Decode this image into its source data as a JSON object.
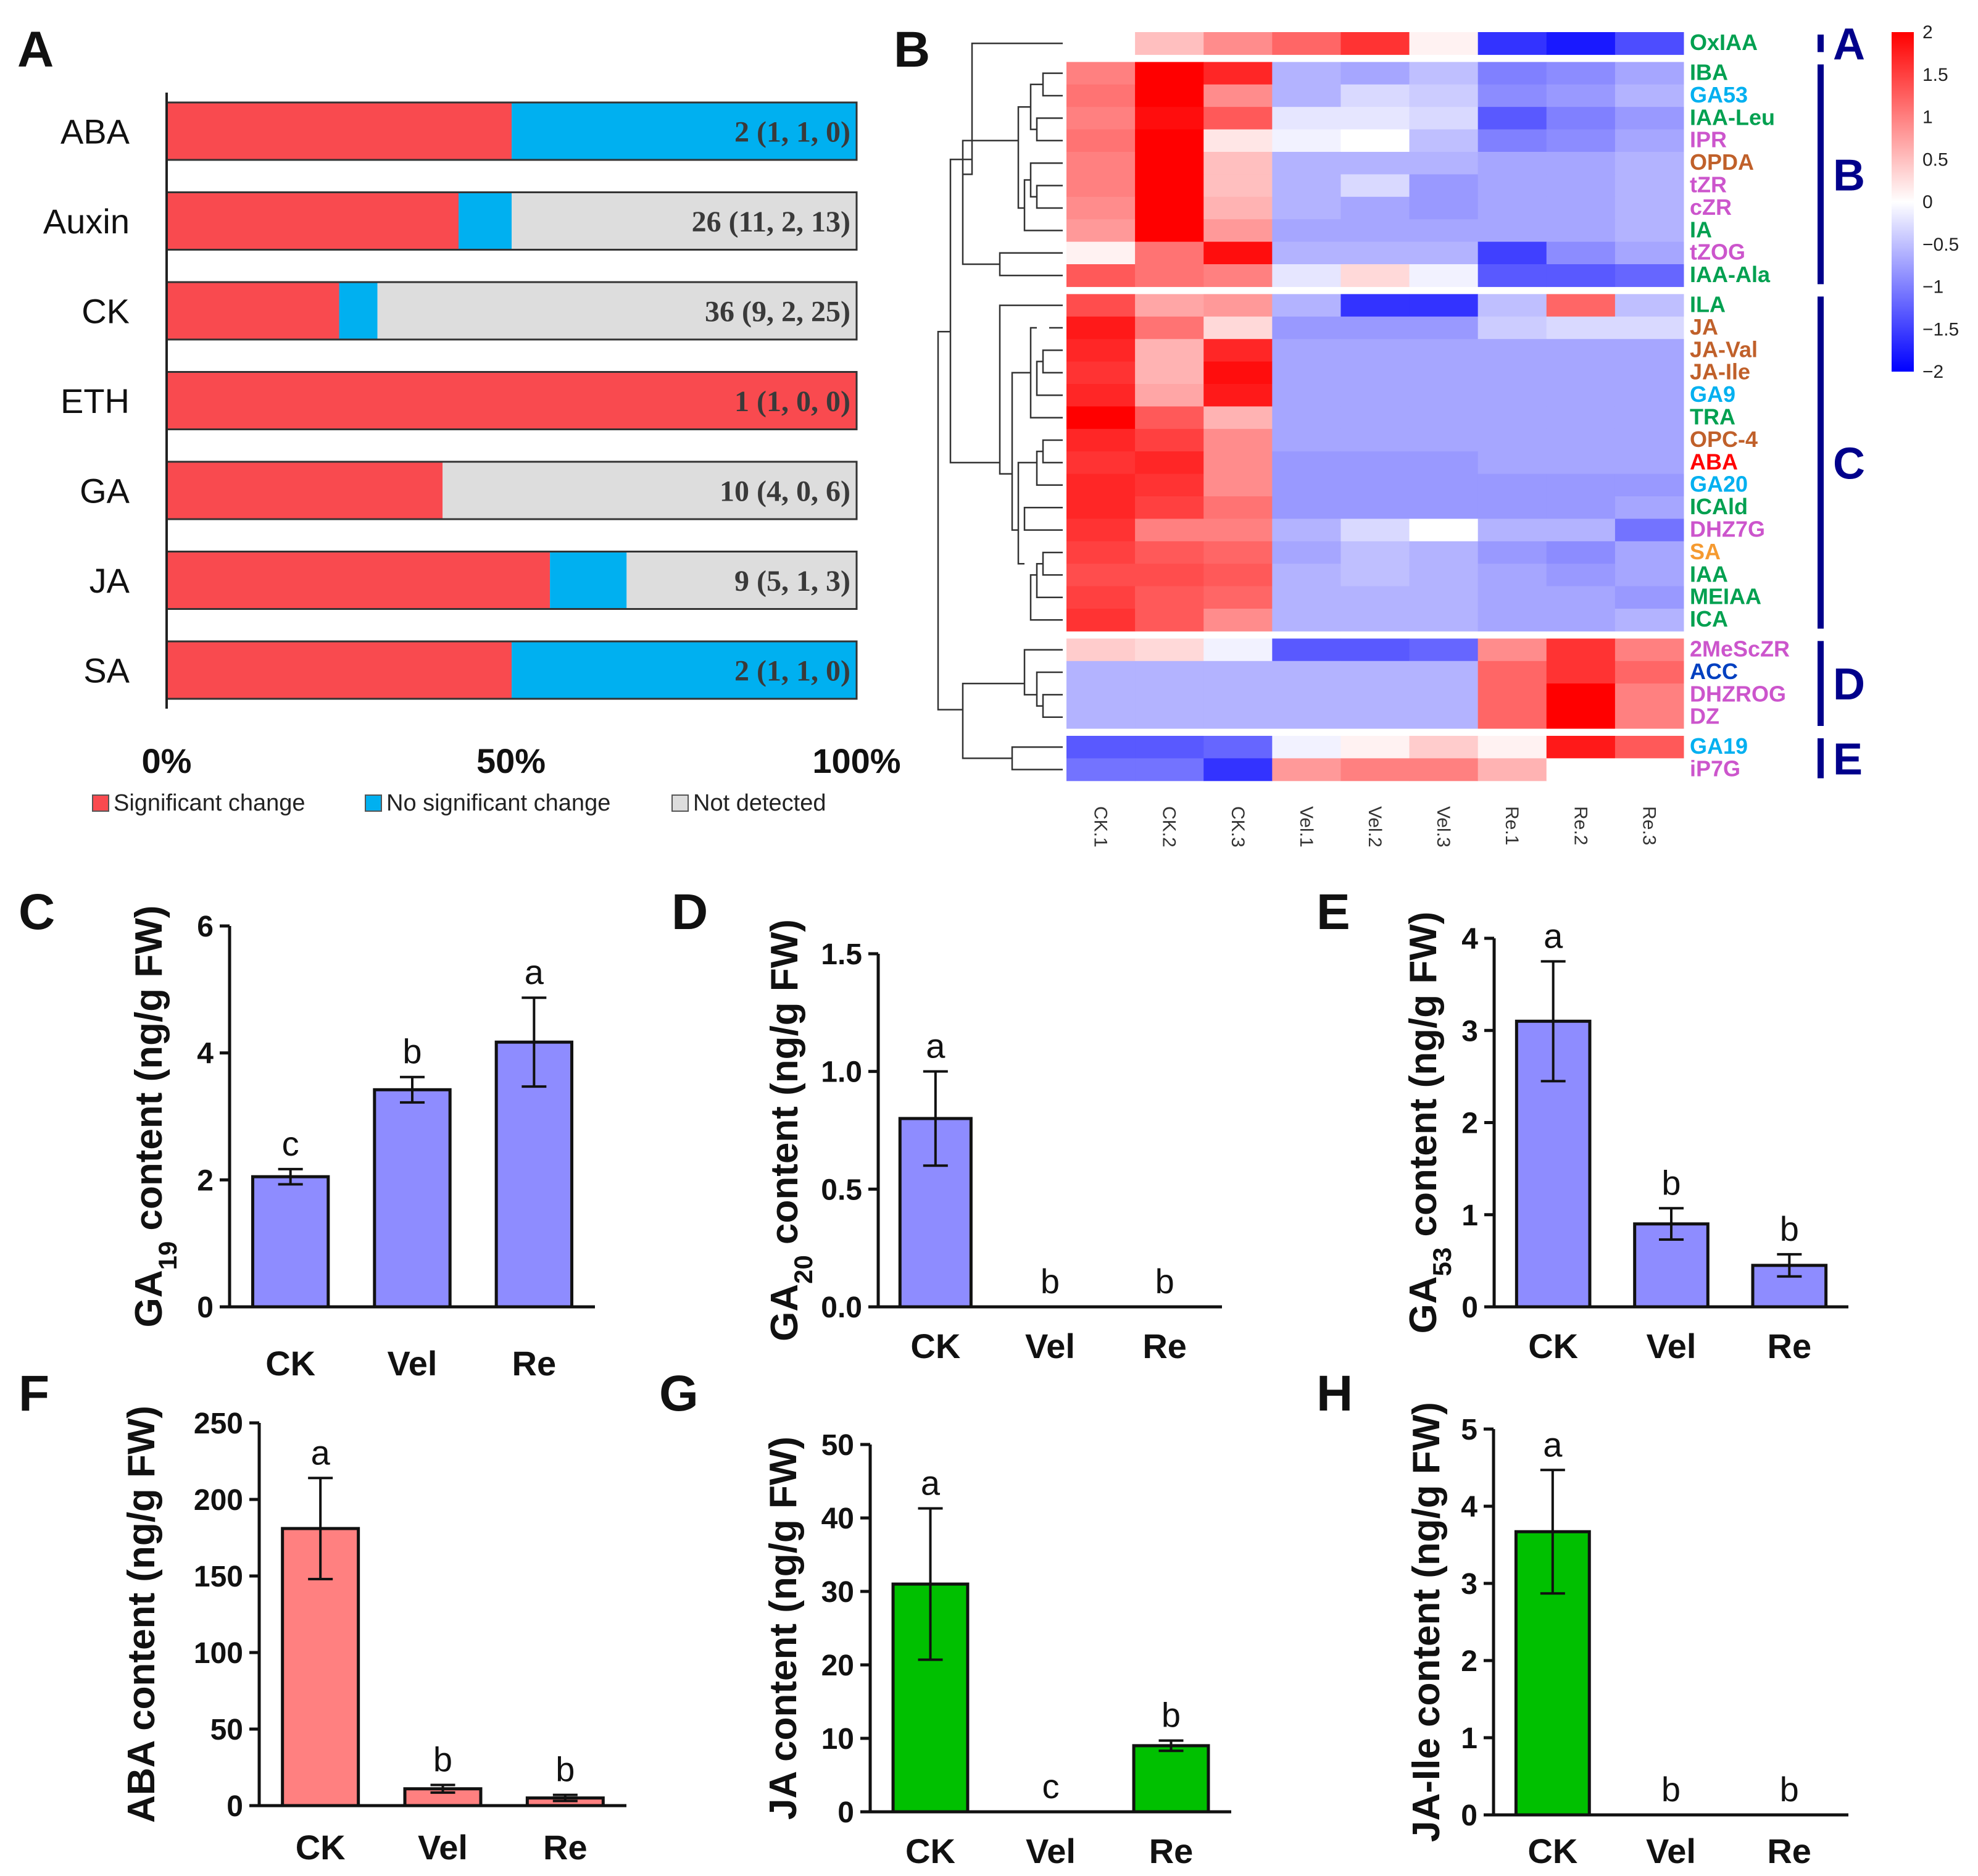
{
  "colors": {
    "significant": "#F94A4F",
    "no_significant": "#00B0F0",
    "not_detected": "#DDDDDD",
    "ga_bar": "#8E8CFF",
    "aba_bar": "#FF8080",
    "ja_bar": "#00C000",
    "cluster_blue": "#00008B",
    "heat_low": "#0000FF",
    "heat_mid": "#FFFFFF",
    "heat_high": "#FF0000"
  },
  "chart_data": [
    {
      "panel": "A",
      "type": "bar",
      "orientation": "horizontal-stacked-percent",
      "categories": [
        "ABA",
        "Auxin",
        "CK",
        "ETH",
        "GA",
        "JA",
        "SA"
      ],
      "series": [
        {
          "name": "Significant change",
          "values": [
            1,
            11,
            9,
            1,
            4,
            5,
            1
          ]
        },
        {
          "name": "No significant change",
          "values": [
            1,
            2,
            2,
            0,
            0,
            1,
            1
          ]
        },
        {
          "name": "Not detected",
          "values": [
            0,
            13,
            25,
            0,
            6,
            3,
            0
          ]
        }
      ],
      "value_labels": [
        "2 (1, 1, 0)",
        "26 (11, 2, 13)",
        "36 (9, 2, 25)",
        "1 (1, 0, 0)",
        "10 (4, 0, 6)",
        "9 (5, 1, 3)",
        "2 (1, 1, 0)"
      ],
      "xticks": [
        "0%",
        "50%",
        "100%"
      ],
      "legend": [
        "Significant change",
        "No significant change",
        "Not detected"
      ],
      "legend_position": "bottom"
    },
    {
      "panel": "B",
      "type": "heatmap",
      "columns": [
        "CK.1",
        "CK.2",
        "CK.3",
        "Vel.1",
        "Vel.2",
        "Vel.3",
        "Re.1",
        "Re.2",
        "Re.3"
      ],
      "rows": [
        {
          "name": "OxIAA",
          "color": "#00A050",
          "values": [
            0,
            0.5,
            0.9,
            1.2,
            1.6,
            0.1,
            -1.6,
            -1.8,
            -1.4
          ]
        },
        {
          "name": "IBA",
          "color": "#00A050",
          "values": [
            1.0,
            2.0,
            1.7,
            -0.6,
            -0.7,
            -0.5,
            -1.0,
            -0.9,
            -0.7
          ]
        },
        {
          "name": "GA53",
          "color": "#00B0F0",
          "values": [
            1.1,
            2.1,
            0.9,
            -0.6,
            -0.3,
            -0.4,
            -0.9,
            -0.8,
            -0.6
          ]
        },
        {
          "name": "IAA-Leu",
          "color": "#00A050",
          "values": [
            1.0,
            1.9,
            1.3,
            -0.2,
            -0.2,
            -0.3,
            -1.3,
            -1.0,
            -0.8
          ]
        },
        {
          "name": "IPR",
          "color": "#CC55CC",
          "values": [
            1.1,
            2.2,
            0.2,
            -0.1,
            0.0,
            -0.5,
            -1.0,
            -0.9,
            -0.7
          ]
        },
        {
          "name": "OPDA",
          "color": "#C0602A",
          "values": [
            1.0,
            2.2,
            0.5,
            -0.6,
            -0.6,
            -0.6,
            -0.7,
            -0.7,
            -0.6
          ]
        },
        {
          "name": "tZR",
          "color": "#CC55CC",
          "values": [
            1.0,
            2.3,
            0.5,
            -0.6,
            -0.3,
            -0.8,
            -0.7,
            -0.7,
            -0.6
          ]
        },
        {
          "name": "cZR",
          "color": "#CC55CC",
          "values": [
            0.9,
            2.2,
            0.6,
            -0.6,
            -0.7,
            -0.8,
            -0.7,
            -0.7,
            -0.6
          ]
        },
        {
          "name": "IA",
          "color": "#00A050",
          "values": [
            0.8,
            2.2,
            0.8,
            -0.7,
            -0.7,
            -0.7,
            -0.7,
            -0.7,
            -0.6
          ]
        },
        {
          "name": "tZOG",
          "color": "#CC55CC",
          "values": [
            0.1,
            1.1,
            1.9,
            -0.6,
            -0.6,
            -0.6,
            -1.5,
            -0.9,
            -0.7
          ]
        },
        {
          "name": "IAA-Ala",
          "color": "#00A050",
          "values": [
            1.3,
            1.1,
            1.0,
            -0.2,
            0.3,
            -0.1,
            -1.3,
            -1.3,
            -1.2
          ]
        },
        {
          "name": "ILA",
          "color": "#00A050",
          "values": [
            1.4,
            0.7,
            0.8,
            -0.6,
            -1.6,
            -1.6,
            -0.5,
            1.2,
            -0.5
          ]
        },
        {
          "name": "JA",
          "color": "#C0602A",
          "values": [
            1.8,
            1.1,
            0.3,
            -0.8,
            -0.8,
            -0.8,
            -0.4,
            -0.3,
            -0.3
          ]
        },
        {
          "name": "JA-Val",
          "color": "#C0602A",
          "values": [
            1.7,
            0.6,
            1.7,
            -0.7,
            -0.7,
            -0.7,
            -0.7,
            -0.7,
            -0.7
          ]
        },
        {
          "name": "JA-Ile",
          "color": "#C0602A",
          "values": [
            1.6,
            0.6,
            1.9,
            -0.7,
            -0.7,
            -0.7,
            -0.7,
            -0.7,
            -0.7
          ]
        },
        {
          "name": "GA9",
          "color": "#00B0F0",
          "values": [
            1.7,
            0.7,
            1.8,
            -0.7,
            -0.7,
            -0.7,
            -0.7,
            -0.7,
            -0.7
          ]
        },
        {
          "name": "TRA",
          "color": "#00A050",
          "values": [
            2.0,
            1.3,
            0.6,
            -0.7,
            -0.7,
            -0.7,
            -0.7,
            -0.7,
            -0.7
          ]
        },
        {
          "name": "OPC-4",
          "color": "#C0602A",
          "values": [
            1.7,
            1.5,
            0.9,
            -0.7,
            -0.7,
            -0.7,
            -0.7,
            -0.7,
            -0.7
          ]
        },
        {
          "name": "ABA",
          "color": "#FF0000",
          "values": [
            1.6,
            1.7,
            0.9,
            -0.8,
            -0.8,
            -0.8,
            -0.7,
            -0.7,
            -0.7
          ]
        },
        {
          "name": "GA20",
          "color": "#00B0F0",
          "values": [
            1.7,
            1.6,
            0.9,
            -0.8,
            -0.8,
            -0.8,
            -0.8,
            -0.8,
            -0.8
          ]
        },
        {
          "name": "ICAld",
          "color": "#00A050",
          "values": [
            1.7,
            1.5,
            1.1,
            -0.8,
            -0.8,
            -0.8,
            -0.8,
            -0.8,
            -0.7
          ]
        },
        {
          "name": "DHZ7G",
          "color": "#CC55CC",
          "values": [
            1.6,
            1.0,
            1.0,
            -0.6,
            -0.3,
            0.0,
            -0.6,
            -0.6,
            -1.1
          ]
        },
        {
          "name": "SA",
          "color": "#F59A30",
          "values": [
            1.5,
            1.3,
            1.2,
            -0.7,
            -0.5,
            -0.6,
            -0.8,
            -0.9,
            -0.7
          ]
        },
        {
          "name": "IAA",
          "color": "#00A050",
          "values": [
            1.4,
            1.4,
            1.3,
            -0.6,
            -0.5,
            -0.6,
            -0.7,
            -0.8,
            -0.7
          ]
        },
        {
          "name": "MEIAA",
          "color": "#00A050",
          "values": [
            1.5,
            1.3,
            1.2,
            -0.6,
            -0.6,
            -0.6,
            -0.7,
            -0.7,
            -0.8
          ]
        },
        {
          "name": "ICA",
          "color": "#00A050",
          "values": [
            1.6,
            1.3,
            0.9,
            -0.6,
            -0.6,
            -0.6,
            -0.7,
            -0.7,
            -0.6
          ]
        },
        {
          "name": "2MeScZR",
          "color": "#CC55CC",
          "values": [
            0.4,
            0.3,
            -0.1,
            -1.3,
            -1.3,
            -1.2,
            0.9,
            1.6,
            1.0
          ]
        },
        {
          "name": "ACC",
          "color": "#0040C0",
          "values": [
            -0.6,
            -0.6,
            -0.6,
            -0.6,
            -0.6,
            -0.6,
            1.2,
            1.6,
            1.2
          ]
        },
        {
          "name": "DHZROG",
          "color": "#CC55CC",
          "values": [
            -0.6,
            -0.6,
            -0.6,
            -0.6,
            -0.6,
            -0.6,
            1.2,
            2.0,
            1.0
          ]
        },
        {
          "name": "DZ",
          "color": "#CC55CC",
          "values": [
            -0.6,
            -0.6,
            -0.6,
            -0.6,
            -0.6,
            -0.6,
            1.2,
            2.0,
            1.0
          ]
        },
        {
          "name": "GA19",
          "color": "#00B0F0",
          "values": [
            -1.3,
            -1.3,
            -1.2,
            -0.1,
            0.1,
            0.4,
            0.1,
            1.8,
            1.3
          ]
        },
        {
          "name": "iP7G",
          "color": "#CC55CC",
          "values": [
            -1.1,
            -1.1,
            -1.6,
            0.8,
            1.0,
            1.0,
            0.6,
            0.0,
            0.0
          ]
        }
      ],
      "clusters": [
        {
          "label": "A",
          "from": 0,
          "to": 0
        },
        {
          "label": "B",
          "from": 1,
          "to": 10
        },
        {
          "label": "C",
          "from": 11,
          "to": 25
        },
        {
          "label": "D",
          "from": 26,
          "to": 29
        },
        {
          "label": "E",
          "from": 30,
          "to": 31
        }
      ],
      "scale_range": [
        -2,
        2
      ],
      "scale_ticks": [
        "2",
        "1.5",
        "1",
        "0.5",
        "0",
        "−0.5",
        "−1",
        "−1.5",
        "−2"
      ]
    },
    {
      "panel": "C",
      "type": "bar",
      "categories": [
        "CK",
        "Vel",
        "Re"
      ],
      "values": [
        2.05,
        3.42,
        4.17
      ],
      "errors": [
        0.12,
        0.2,
        0.7
      ],
      "letters": [
        "c",
        "b",
        "a"
      ],
      "ylabel_main": "GA",
      "ylabel_sub": "19",
      "ylabel_rest": " content (ng/g FW)",
      "ylim": [
        0,
        6
      ],
      "yticks": [
        "0",
        "2",
        "4",
        "6"
      ]
    },
    {
      "panel": "D",
      "type": "bar",
      "categories": [
        "CK",
        "Vel",
        "Re"
      ],
      "values": [
        0.8,
        0,
        0
      ],
      "errors": [
        0.2,
        0,
        0
      ],
      "letters": [
        "a",
        "b",
        "b"
      ],
      "ylabel_main": "GA",
      "ylabel_sub": "20",
      "ylabel_rest": " content (ng/g FW)",
      "ylim": [
        0,
        1.5
      ],
      "yticks": [
        "0.0",
        "0.5",
        "1.0",
        "1.5"
      ]
    },
    {
      "panel": "E",
      "type": "bar",
      "categories": [
        "CK",
        "Vel",
        "Re"
      ],
      "values": [
        3.1,
        0.9,
        0.45
      ],
      "errors": [
        0.65,
        0.17,
        0.12
      ],
      "letters": [
        "a",
        "b",
        "b"
      ],
      "ylabel_main": "GA",
      "ylabel_sub": "53",
      "ylabel_rest": " content (ng/g FW)",
      "ylim": [
        0,
        4
      ],
      "yticks": [
        "0",
        "1",
        "2",
        "3",
        "4"
      ]
    },
    {
      "panel": "F",
      "type": "bar",
      "categories": [
        "CK",
        "Vel",
        "Re"
      ],
      "values": [
        181,
        11,
        5
      ],
      "errors": [
        33,
        2.5,
        2
      ],
      "letters": [
        "a",
        "b",
        "b"
      ],
      "ylabel_main": "ABA content (ng/g FW)",
      "ylabel_sub": "",
      "ylabel_rest": "",
      "ylim": [
        0,
        250
      ],
      "yticks": [
        "0",
        "50",
        "100",
        "150",
        "200",
        "250"
      ]
    },
    {
      "panel": "G",
      "type": "bar",
      "categories": [
        "CK",
        "Vel",
        "Re"
      ],
      "values": [
        31,
        0,
        9
      ],
      "errors": [
        10.3,
        0,
        0.7
      ],
      "letters": [
        "a",
        "c",
        "b"
      ],
      "ylabel_main": "JA content (ng/g FW)",
      "ylabel_sub": "",
      "ylabel_rest": "",
      "ylim": [
        0,
        50
      ],
      "yticks": [
        "0",
        "10",
        "20",
        "30",
        "40",
        "50"
      ]
    },
    {
      "panel": "H",
      "type": "bar",
      "categories": [
        "CK",
        "Vel",
        "Re"
      ],
      "values": [
        3.67,
        0,
        0
      ],
      "errors": [
        0.8,
        0,
        0
      ],
      "letters": [
        "a",
        "b",
        "b"
      ],
      "ylabel_main": "JA-Ile content (ng/g FW)",
      "ylabel_sub": "",
      "ylabel_rest": "",
      "ylim": [
        0,
        5
      ],
      "yticks": [
        "0",
        "1",
        "2",
        "3",
        "4",
        "5"
      ]
    }
  ]
}
